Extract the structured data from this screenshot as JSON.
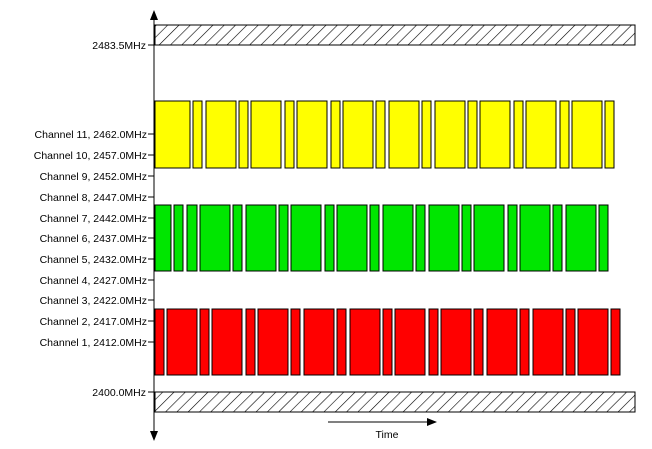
{
  "band_labels": {
    "top": "2483.5MHz",
    "bottom": "2400.0MHz"
  },
  "time_label": "Time",
  "channels": [
    {
      "number": 11,
      "label": "Channel 11, 2462.0MHz"
    },
    {
      "number": 10,
      "label": "Channel 10, 2457.0MHz"
    },
    {
      "number": 9,
      "label": "Channel 9, 2452.0MHz"
    },
    {
      "number": 8,
      "label": "Channel 8, 2447.0MHz"
    },
    {
      "number": 7,
      "label": "Channel 7, 2442.0MHz"
    },
    {
      "number": 6,
      "label": "Channel 6, 2437.0MHz"
    },
    {
      "number": 5,
      "label": "Channel 5, 2432.0MHz"
    },
    {
      "number": 4,
      "label": "Channel 4, 2427.0MHz"
    },
    {
      "number": 3,
      "label": "Channel 3, 2422.0MHz"
    },
    {
      "number": 2,
      "label": "Channel 2, 2417.0MHz"
    },
    {
      "number": 1,
      "label": "Channel 1, 2412.0MHz"
    }
  ],
  "colors": {
    "channel_11_block": "#ffff00",
    "channel_6_block": "#00e600",
    "channel_1_block": "#ff0000",
    "border": "#000000",
    "hatch": "#000000"
  }
}
